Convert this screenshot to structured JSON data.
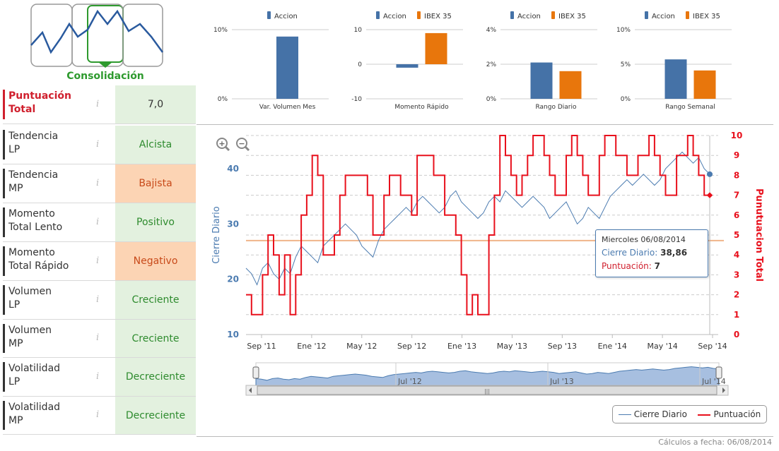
{
  "logo": {
    "label": "Consolidación"
  },
  "indicators": [
    {
      "label_lines": [
        "Puntuación",
        "Total"
      ],
      "value": "7,0",
      "tone": "total",
      "highlight": true
    },
    {
      "label_lines": [
        "Tendencia",
        "LP"
      ],
      "value": "Alcista",
      "tone": "green"
    },
    {
      "label_lines": [
        "Tendencia",
        "MP"
      ],
      "value": "Bajista",
      "tone": "orange"
    },
    {
      "label_lines": [
        "Momento",
        "Total Lento"
      ],
      "value": "Positivo",
      "tone": "green"
    },
    {
      "label_lines": [
        "Momento",
        "Total Rápido"
      ],
      "value": "Negativo",
      "tone": "orange"
    },
    {
      "label_lines": [
        "Volumen",
        "LP"
      ],
      "value": "Creciente",
      "tone": "green"
    },
    {
      "label_lines": [
        "Volumen",
        "MP"
      ],
      "value": "Creciente",
      "tone": "green"
    },
    {
      "label_lines": [
        "Volatilidad",
        "LP"
      ],
      "value": "Decreciente",
      "tone": "green"
    },
    {
      "label_lines": [
        "Volatilidad",
        "MP"
      ],
      "value": "Decreciente",
      "tone": "green"
    }
  ],
  "info_glyph": "i",
  "colors": {
    "accion": "#4572a7",
    "ibex": "#e8760c",
    "puntuacion": "#e8101c",
    "cierre": "#4b7bb0",
    "reference": "#f0b48a"
  },
  "footer": "Cálculos a fecha: 06/08/2014",
  "legend": {
    "cierre": "Cierre Diario",
    "puntuacion": "Puntuación"
  },
  "tooltip": {
    "date": "Miercoles 06/08/2014",
    "cierre_label": "Cierre Diario:",
    "cierre_value": "38,86",
    "punt_label": "Puntuación:",
    "punt_value": "7"
  },
  "zoom": {
    "in_icon": "zoom-in-icon",
    "out_icon": "zoom-out-icon"
  },
  "chart_data": [
    {
      "type": "bar",
      "id": "vol-mes",
      "categories": [
        "Var. Volumen Mes"
      ],
      "series": [
        {
          "name": "Accion",
          "values": [
            9
          ]
        }
      ],
      "yticks": [
        "10%",
        "0%"
      ],
      "ylim": [
        0,
        10
      ]
    },
    {
      "type": "bar",
      "id": "momento",
      "categories": [
        "Momento Rápido"
      ],
      "series": [
        {
          "name": "Accion",
          "values": [
            -1
          ]
        },
        {
          "name": "IBEX 35",
          "values": [
            9
          ]
        }
      ],
      "yticks": [
        "10",
        "0",
        "-10"
      ],
      "ylim": [
        -10,
        10
      ]
    },
    {
      "type": "bar",
      "id": "rango-diario",
      "categories": [
        "Rango Diario"
      ],
      "series": [
        {
          "name": "Accion",
          "values": [
            2.1
          ]
        },
        {
          "name": "IBEX 35",
          "values": [
            1.6
          ]
        }
      ],
      "yticks": [
        "4%",
        "2%",
        "0%"
      ],
      "ylim": [
        0,
        4
      ]
    },
    {
      "type": "bar",
      "id": "rango-semanal",
      "categories": [
        "Rango Semanal"
      ],
      "series": [
        {
          "name": "Accion",
          "values": [
            5.7
          ]
        },
        {
          "name": "IBEX 35",
          "values": [
            4.1
          ]
        }
      ],
      "yticks": [
        "10%",
        "5%",
        "0%"
      ],
      "ylim": [
        0,
        10
      ]
    },
    {
      "type": "line",
      "id": "main",
      "ylabel_left": "Cierre Diario",
      "ylabel_right": "Punutuacion Total",
      "left_ticks": [
        10,
        20,
        30,
        40
      ],
      "left_range": [
        10,
        46
      ],
      "right_ticks": [
        0,
        1,
        2,
        3,
        4,
        5,
        6,
        7,
        8,
        9,
        10
      ],
      "right_range": [
        0,
        10
      ],
      "xticks": [
        "Sep '11",
        "Ene '12",
        "May '12",
        "Sep '12",
        "Ene '13",
        "May '13",
        "Sep '13",
        "Ene '14",
        "May '14",
        "Sep '14"
      ],
      "reference_value": 27,
      "navigator_labels": [
        "Jul '12",
        "Jul '13",
        "Jul '14"
      ],
      "series": [
        {
          "name": "Cierre Diario",
          "values": [
            22,
            21,
            19,
            22,
            23,
            21,
            20,
            22,
            21,
            24,
            26,
            25,
            24,
            23,
            26,
            27,
            28,
            29,
            30,
            29,
            28,
            26,
            25,
            24,
            27,
            29,
            30,
            31,
            32,
            33,
            32,
            34,
            35,
            34,
            33,
            32,
            33,
            35,
            36,
            34,
            33,
            32,
            31,
            32,
            34,
            35,
            34,
            36,
            35,
            34,
            33,
            34,
            35,
            34,
            33,
            31,
            32,
            33,
            34,
            32,
            30,
            31,
            33,
            32,
            31,
            33,
            35,
            36,
            37,
            38,
            37,
            38,
            39,
            38,
            37,
            38,
            40,
            41,
            42,
            43,
            42,
            41,
            42,
            40,
            39
          ]
        },
        {
          "name": "Puntuación",
          "values": [
            2,
            1,
            1,
            3,
            5,
            4,
            2,
            4,
            1,
            3,
            6,
            7,
            9,
            8,
            4,
            4,
            5,
            7,
            8,
            8,
            8,
            8,
            7,
            5,
            5,
            7,
            8,
            8,
            7,
            7,
            6,
            9,
            9,
            9,
            8,
            8,
            6,
            6,
            5,
            3,
            1,
            2,
            1,
            1,
            5,
            7,
            10,
            9,
            8,
            7,
            8,
            9,
            10,
            10,
            9,
            8,
            7,
            7,
            9,
            10,
            9,
            8,
            7,
            7,
            9,
            10,
            10,
            9,
            9,
            8,
            8,
            9,
            9,
            10,
            9,
            8,
            7,
            7,
            9,
            9,
            10,
            9,
            8,
            7,
            7
          ]
        }
      ]
    }
  ]
}
